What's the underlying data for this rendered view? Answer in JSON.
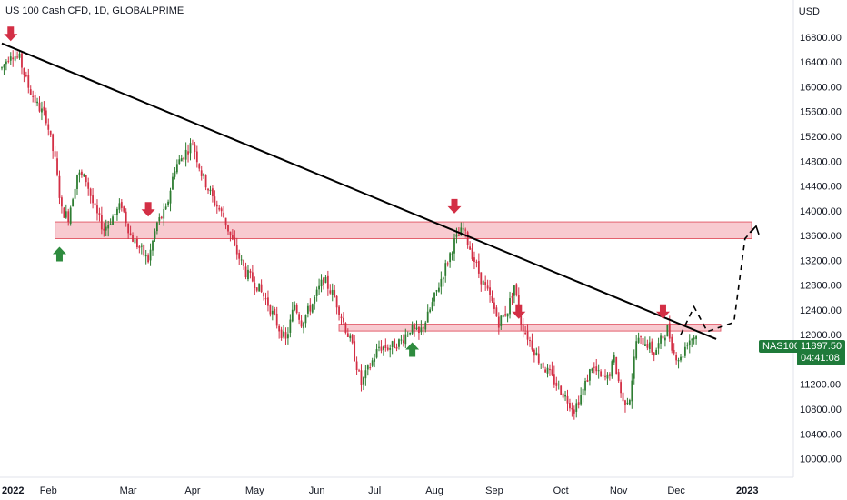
{
  "header": {
    "title": "US 100 Cash CFD, 1D, GLOBALPRIME",
    "currency": "USD"
  },
  "badges": {
    "symbol": "NAS100",
    "price": "11897.50",
    "countdown": "04:41:08"
  },
  "colors": {
    "up": "#2e7d32",
    "down": "#d32f45",
    "zone_fill": "#f8c5cc",
    "zone_border": "#e0505f",
    "trendline": "#000000",
    "arrow_down": "#d32f45",
    "arrow_up": "#2e8b3e",
    "badge": "#1f7a3a"
  },
  "chart_data": {
    "type": "candlestick",
    "ylim": [
      9700,
      17400
    ],
    "y_ticks": [
      "16800.00",
      "16400.00",
      "16000.00",
      "15600.00",
      "15200.00",
      "14800.00",
      "14400.00",
      "14000.00",
      "13600.00",
      "13200.00",
      "12800.00",
      "12400.00",
      "12000.00",
      "11600.00",
      "11200.00",
      "10800.00",
      "10400.00",
      "10000.00"
    ],
    "x_ticks": [
      "2022",
      "Feb",
      "Mar",
      "Apr",
      "May",
      "Jun",
      "Jul",
      "Aug",
      "Sep",
      "Oct",
      "Nov",
      "Dec",
      "2023"
    ],
    "waypoints": [
      [
        0,
        16300
      ],
      [
        4,
        16550
      ],
      [
        8,
        16450
      ],
      [
        12,
        16000
      ],
      [
        16,
        15700
      ],
      [
        20,
        15500
      ],
      [
        24,
        14800
      ],
      [
        27,
        14000
      ],
      [
        30,
        13900
      ],
      [
        34,
        14600
      ],
      [
        38,
        14500
      ],
      [
        42,
        14000
      ],
      [
        46,
        13700
      ],
      [
        50,
        13900
      ],
      [
        54,
        14100
      ],
      [
        58,
        13600
      ],
      [
        62,
        13400
      ],
      [
        66,
        13200
      ],
      [
        70,
        13800
      ],
      [
        74,
        14000
      ],
      [
        78,
        14700
      ],
      [
        82,
        14900
      ],
      [
        86,
        15100
      ],
      [
        90,
        14600
      ],
      [
        95,
        14200
      ],
      [
        100,
        13900
      ],
      [
        105,
        13400
      ],
      [
        110,
        13000
      ],
      [
        115,
        12800
      ],
      [
        120,
        12500
      ],
      [
        125,
        12100
      ],
      [
        128,
        11900
      ],
      [
        132,
        12500
      ],
      [
        135,
        12200
      ],
      [
        140,
        12500
      ],
      [
        145,
        12900
      ],
      [
        150,
        12600
      ],
      [
        155,
        12100
      ],
      [
        158,
        11800
      ],
      [
        162,
        11200
      ],
      [
        166,
        11500
      ],
      [
        170,
        11800
      ],
      [
        175,
        11800
      ],
      [
        180,
        11900
      ],
      [
        184,
        12100
      ],
      [
        188,
        12000
      ],
      [
        192,
        12300
      ],
      [
        196,
        12700
      ],
      [
        200,
        13100
      ],
      [
        204,
        13500
      ],
      [
        208,
        13700
      ],
      [
        212,
        13300
      ],
      [
        216,
        12900
      ],
      [
        220,
        12600
      ],
      [
        224,
        12200
      ],
      [
        228,
        12400
      ],
      [
        231,
        12800
      ],
      [
        234,
        12200
      ],
      [
        238,
        11900
      ],
      [
        242,
        11600
      ],
      [
        246,
        11400
      ],
      [
        250,
        11200
      ],
      [
        254,
        11000
      ],
      [
        258,
        10800
      ],
      [
        262,
        11100
      ],
      [
        266,
        11500
      ],
      [
        270,
        11300
      ],
      [
        273,
        11300
      ],
      [
        276,
        11600
      ],
      [
        280,
        10900
      ],
      [
        283,
        11000
      ],
      [
        286,
        11900
      ],
      [
        290,
        11900
      ],
      [
        294,
        11700
      ],
      [
        297,
        11900
      ],
      [
        300,
        12100
      ],
      [
        303,
        11700
      ],
      [
        306,
        11600
      ],
      [
        309,
        11900
      ],
      [
        313,
        12000
      ]
    ],
    "trendline": [
      [
        0,
        16700
      ],
      [
        322,
        11930
      ]
    ],
    "zones": [
      {
        "x": [
          24,
          338
        ],
        "y": [
          13550,
          13820
        ]
      },
      {
        "x": [
          152,
          324
        ],
        "y": [
          12060,
          12170
        ]
      }
    ],
    "projection": [
      [
        306,
        12000
      ],
      [
        312,
        12450
      ],
      [
        318,
        12050
      ],
      [
        330,
        12200
      ],
      [
        335,
        13550
      ],
      [
        340,
        13750
      ]
    ],
    "arrows_down": [
      [
        4,
        16780
      ],
      [
        66,
        13950
      ],
      [
        204,
        14000
      ],
      [
        233,
        12300
      ],
      [
        298,
        12300
      ]
    ],
    "arrows_up": [
      [
        26,
        13300
      ],
      [
        185,
        11760
      ]
    ],
    "x_tick_positions": [
      0,
      21,
      57,
      86,
      114,
      142,
      168,
      195,
      222,
      252,
      278,
      304,
      336
    ]
  }
}
